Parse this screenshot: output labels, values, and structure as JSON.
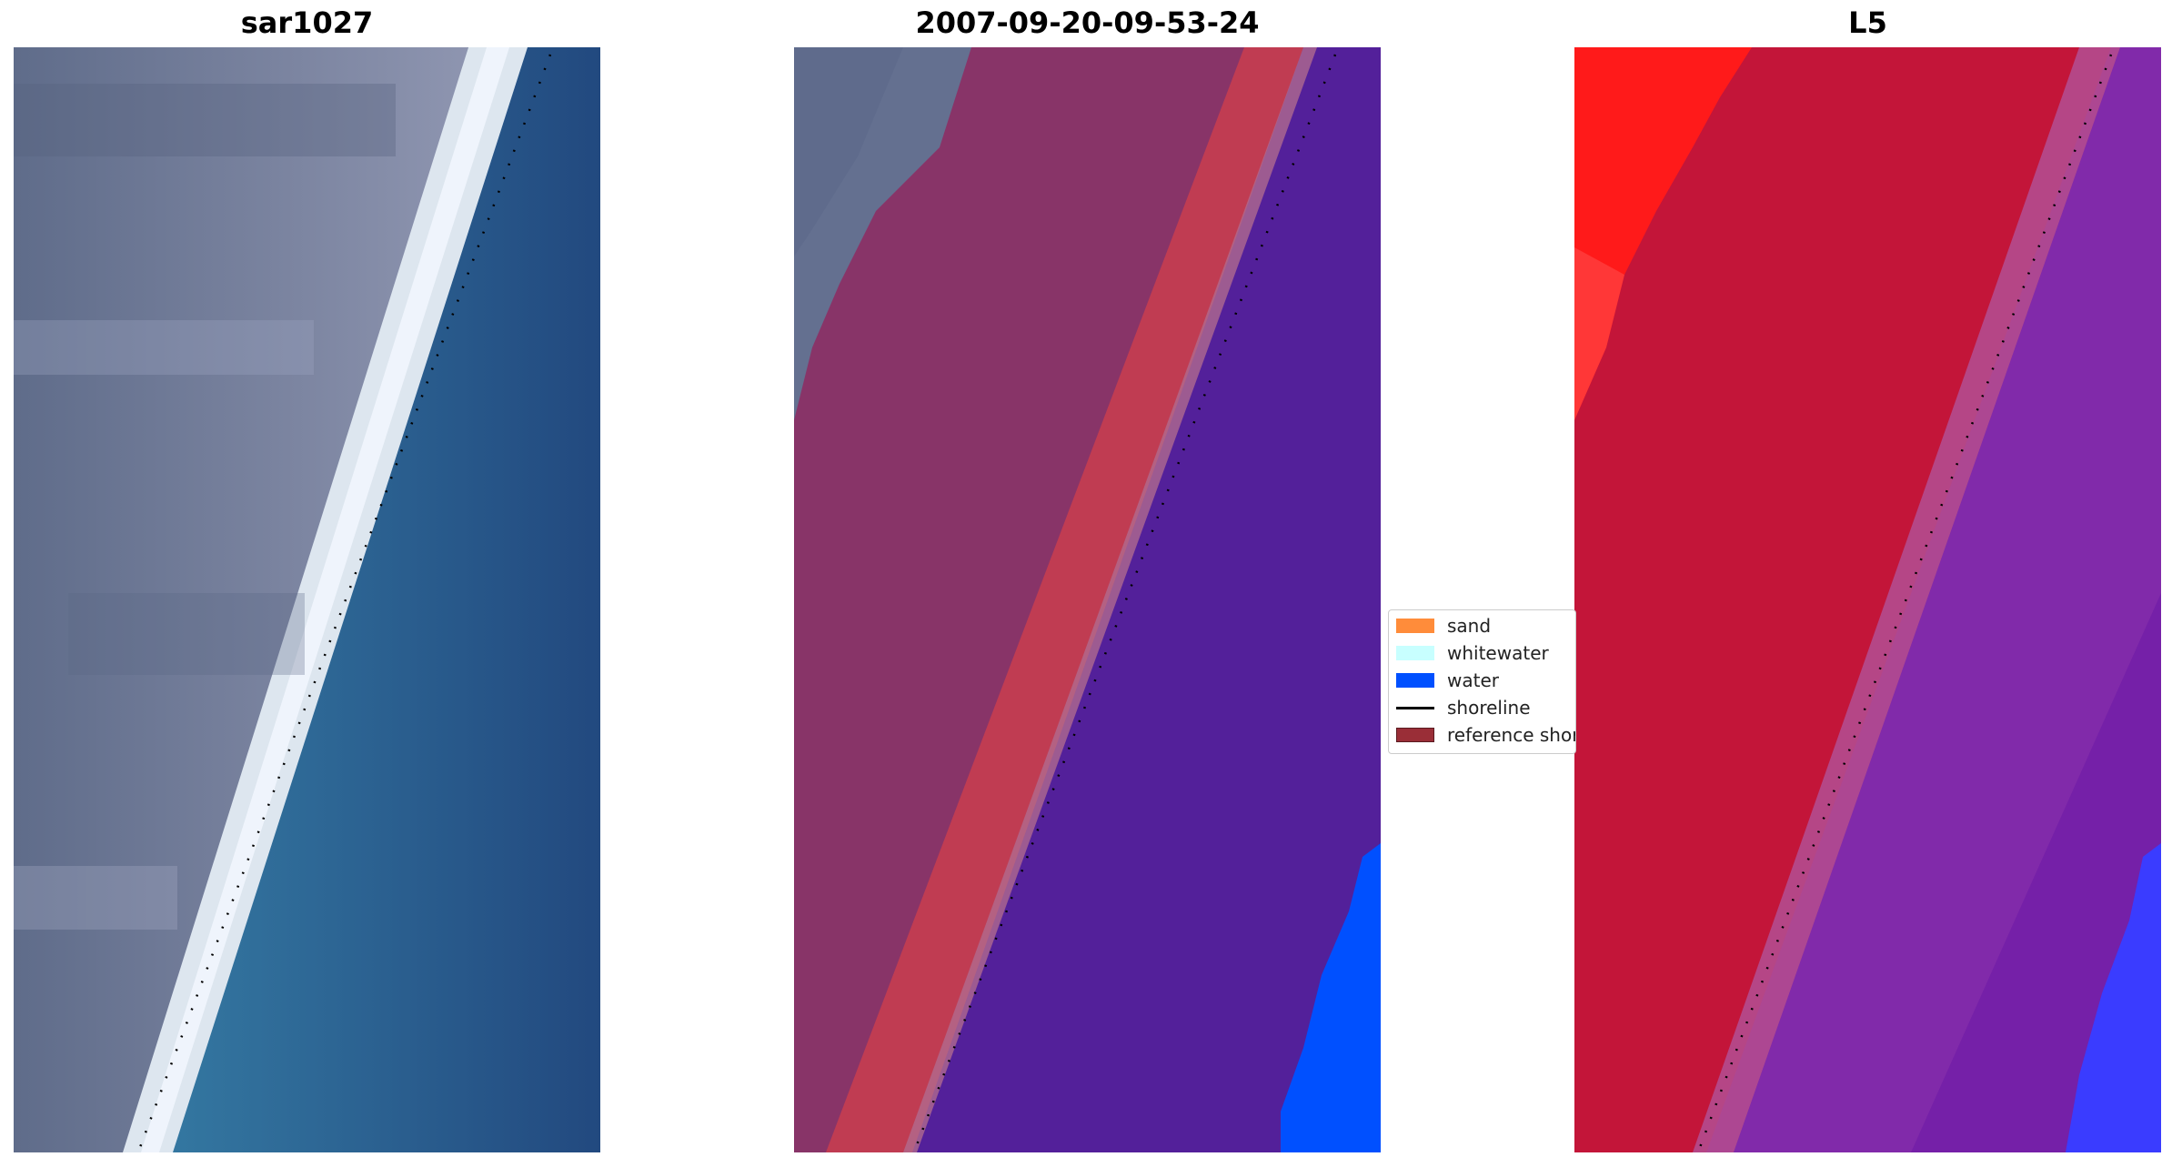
{
  "panels": [
    {
      "title": "sar1027"
    },
    {
      "title": "2007-09-20-09-53-24"
    },
    {
      "title": "L5"
    }
  ],
  "legend": {
    "items": [
      {
        "label": "sand",
        "color": "#ff8c3a",
        "kind": "patch"
      },
      {
        "label": "whitewater",
        "color": "#c8ffff",
        "kind": "patch"
      },
      {
        "label": "water",
        "color": "#0050ff",
        "kind": "patch"
      },
      {
        "label": "shoreline",
        "color": "#000000",
        "kind": "line"
      },
      {
        "label": "reference shoreline",
        "color": "#9a2e37",
        "kind": "patch"
      }
    ]
  },
  "colors": {
    "rgb_land": "#6c7690",
    "rgb_sand": "#dfe6ee",
    "rgb_water": "#2a6d9c",
    "class_land": "#883468",
    "class_sand": "#c03c52",
    "class_water": "#53209a",
    "class_water_blue": "#0050ff",
    "index_land": "#c31539",
    "index_bright": "#ff1515",
    "index_water": "#7520a8",
    "index_blue": "#3a3cff",
    "shoreline_dots": "#000000"
  }
}
